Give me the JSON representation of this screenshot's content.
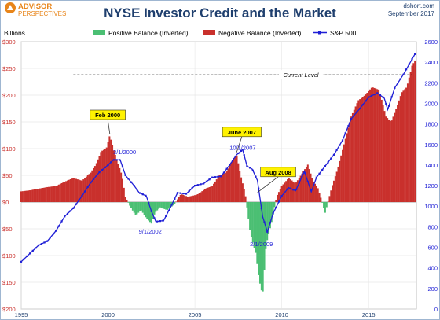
{
  "brand": {
    "line1": "ADVISOR",
    "line2": "PERSPECTIVES"
  },
  "header": {
    "source": "dshort.com",
    "date": "September 2017"
  },
  "chart_data": {
    "type": "bar+line",
    "title": "NYSE Investor Credit and the Market",
    "ylabel_left": "Billions",
    "x_range": [
      1995,
      2017.75
    ],
    "x_ticks": [
      "1995",
      "2000",
      "2005",
      "2010",
      "2015"
    ],
    "x_tick_values": [
      1995,
      2000,
      2005,
      2010,
      2015
    ],
    "y_left": {
      "range": [
        -200,
        300
      ],
      "ticks": [
        300,
        250,
        200,
        150,
        100,
        50,
        0,
        -50,
        -100,
        -150,
        -200
      ],
      "tick_labels": [
        "$300",
        "$250",
        "$200",
        "$150",
        "$100",
        "$50",
        "$0",
        "$50",
        "$100",
        "$150",
        "$200"
      ],
      "note": "negative balance plotted upward, positive balance plotted downward (inverted)"
    },
    "y_right": {
      "range": [
        0,
        2600
      ],
      "ticks": [
        0,
        200,
        400,
        600,
        800,
        1000,
        1200,
        1400,
        1600,
        1800,
        2000,
        2200,
        2400,
        2600
      ],
      "tick_labels": [
        "0",
        "200",
        "400",
        "600",
        "800",
        "1000",
        "1200",
        "1400",
        "1600",
        "1800",
        "2000",
        "2200",
        "2400",
        "2600"
      ]
    },
    "legend": {
      "placement": "top",
      "items": [
        {
          "name": "Positive Balance (Inverted)",
          "color": "#4bbf73"
        },
        {
          "name": "Negative Balance (Inverted)",
          "color": "#c9302c"
        },
        {
          "name": "S&P 500",
          "color": "#1f1fd6"
        }
      ]
    },
    "credit_balance": {
      "x": [
        1995,
        1995.5,
        1996,
        1996.5,
        1997,
        1997.5,
        1998,
        1998.5,
        1999,
        1999.3,
        1999.6,
        1999.9,
        2000.1,
        2000.3,
        2000.5,
        2000.8,
        2001,
        2001.3,
        2001.6,
        2001.9,
        2002.2,
        2002.5,
        2002.7,
        2003,
        2003.4,
        2003.8,
        2004.2,
        2004.6,
        2004.9,
        2005.2,
        2005.6,
        2006,
        2006.4,
        2006.8,
        2007.1,
        2007.4,
        2007.6,
        2007.9,
        2008.2,
        2008.5,
        2008.7,
        2008.9,
        2009.1,
        2009.4,
        2009.7,
        2010,
        2010.4,
        2010.8,
        2011.2,
        2011.5,
        2011.8,
        2012.1,
        2012.5,
        2012.9,
        2013.2,
        2013.6,
        2014,
        2014.4,
        2014.8,
        2015.2,
        2015.6,
        2016,
        2016.3,
        2016.6,
        2016.9,
        2017.2,
        2017.5,
        2017.67
      ],
      "values": [
        20,
        22,
        25,
        28,
        30,
        38,
        45,
        40,
        55,
        70,
        95,
        100,
        125,
        100,
        80,
        50,
        10,
        -10,
        -25,
        -15,
        -30,
        -40,
        -20,
        -10,
        -15,
        -5,
        15,
        10,
        12,
        15,
        25,
        30,
        50,
        55,
        75,
        90,
        55,
        15,
        -60,
        -95,
        -145,
        -175,
        -80,
        -40,
        10,
        30,
        45,
        35,
        55,
        70,
        40,
        25,
        -20,
        30,
        60,
        110,
        160,
        190,
        200,
        215,
        210,
        160,
        150,
        175,
        205,
        215,
        255,
        265
      ]
    },
    "sp500": {
      "x": [
        1995,
        1995.5,
        1996,
        1996.5,
        1997,
        1997.5,
        1998,
        1998.5,
        1999,
        1999.5,
        2000,
        2000.3,
        2000.7,
        2001,
        2001.5,
        2001.8,
        2002.2,
        2002.5,
        2002.75,
        2003.2,
        2003.6,
        2004,
        2004.5,
        2005,
        2005.5,
        2006,
        2006.5,
        2007,
        2007.4,
        2007.75,
        2008,
        2008.3,
        2008.6,
        2008.9,
        2009.17,
        2009.5,
        2010,
        2010.4,
        2010.8,
        2011.3,
        2011.7,
        2012,
        2012.5,
        2013,
        2013.5,
        2014,
        2014.5,
        2015,
        2015.5,
        2015.9,
        2016.1,
        2016.5,
        2017,
        2017.4,
        2017.67
      ],
      "values": [
        460,
        540,
        620,
        660,
        760,
        900,
        980,
        1100,
        1230,
        1330,
        1400,
        1450,
        1450,
        1300,
        1200,
        1130,
        1100,
        950,
        850,
        860,
        990,
        1130,
        1120,
        1200,
        1220,
        1280,
        1290,
        1400,
        1500,
        1550,
        1390,
        1360,
        1250,
        900,
        750,
        930,
        1100,
        1180,
        1150,
        1340,
        1140,
        1280,
        1390,
        1500,
        1640,
        1850,
        1950,
        2060,
        2100,
        2050,
        1940,
        2150,
        2280,
        2400,
        2480
      ]
    },
    "reference_line": {
      "label": "Current Level",
      "value": 238
    },
    "annotations_boxed": [
      {
        "text": "Feb 2000",
        "x": 2000.1,
        "value": 125
      },
      {
        "text": "June 2007",
        "x": 2007.4,
        "value": 90
      },
      {
        "text": "Aug 2008",
        "x": 2008.6,
        "value": 15
      }
    ],
    "annotations_dates": [
      {
        "text": "3/1/2000",
        "x": 2000.2,
        "value": 1520
      },
      {
        "text": "10/1/2007",
        "x": 2007.75,
        "value": 1580
      },
      {
        "text": "9/1/2002",
        "x": 2002.7,
        "value": 840
      },
      {
        "text": "2/1/2009",
        "x": 2009.1,
        "value": 720
      }
    ]
  }
}
